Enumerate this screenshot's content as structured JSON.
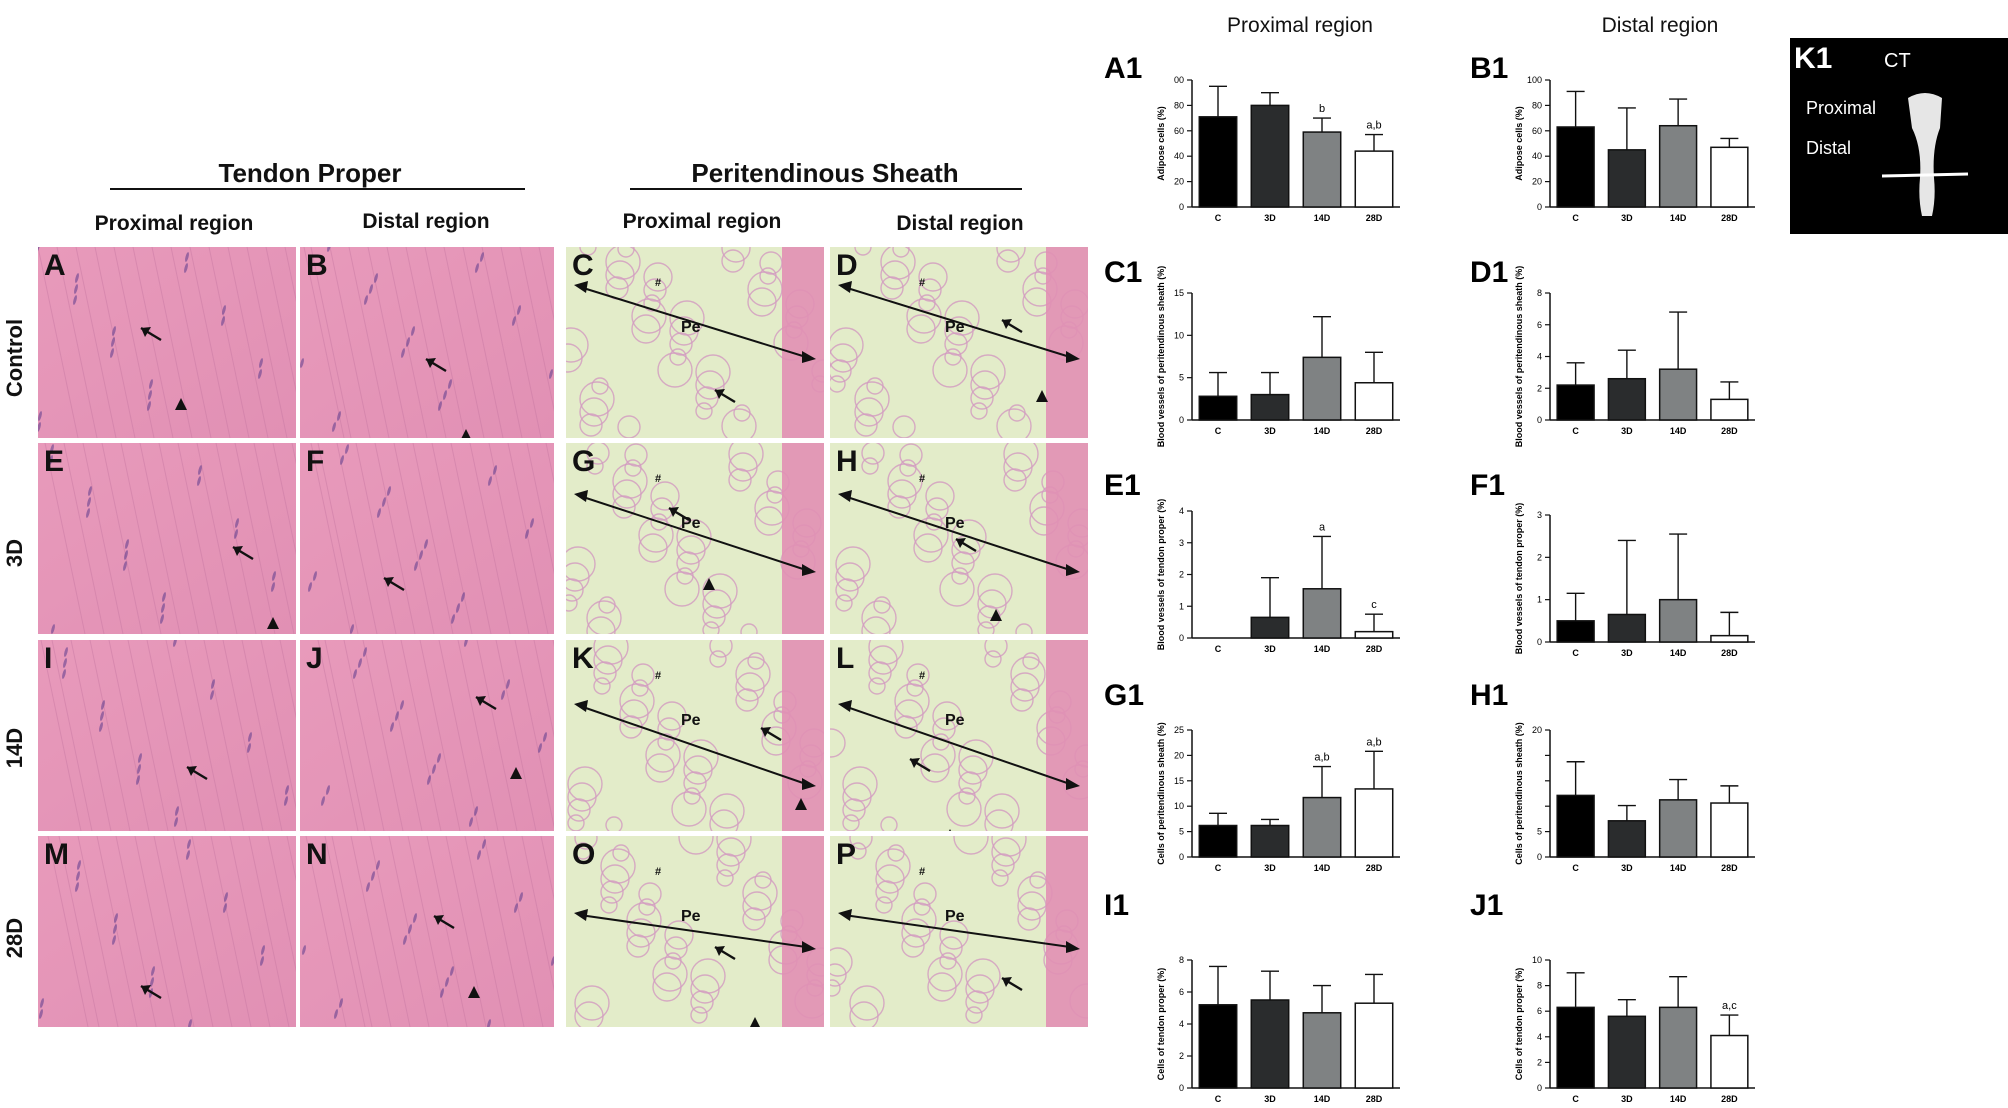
{
  "figure": {
    "tendon_proper": "Tendon Proper",
    "peritendinous_sheath": "Peritendinous Sheath",
    "proximal_region": "Proximal region",
    "distal_region": "Distal region",
    "rows": [
      "Control",
      "3D",
      "14D",
      "28D"
    ],
    "panel_letters": [
      "A",
      "B",
      "C",
      "D",
      "E",
      "F",
      "G",
      "H",
      "I",
      "J",
      "K",
      "L",
      "M",
      "N",
      "O",
      "P"
    ],
    "pe_label": "Pe",
    "hash_label": "#",
    "chart_col_proximal": "Proximal region",
    "chart_col_distal": "Distal region"
  },
  "inset": {
    "letter": "K1",
    "ct": "CT",
    "proximal": "Proximal",
    "distal": "Distal"
  },
  "colors": {
    "tendon_pink": "#e190b4",
    "sheath_green": "#e3ecc9",
    "bar_c": "#000000",
    "bar_3d": "#2a2c2d",
    "bar_14d": "#7f8283",
    "bar_28d": "#ffffff"
  },
  "chart_data": [
    {
      "id": "A1",
      "type": "bar",
      "ylabel": "Adipose cells (%)",
      "categories": [
        "C",
        "3D",
        "14D",
        "28D"
      ],
      "values": [
        71,
        80,
        59,
        44
      ],
      "errors": [
        24,
        10,
        11,
        13
      ],
      "ylim": [
        0,
        100
      ],
      "ticks": [
        "0",
        "20",
        "40",
        "60",
        "80",
        "00"
      ],
      "annotations": [
        "",
        "",
        "b",
        "a,b"
      ]
    },
    {
      "id": "B1",
      "type": "bar",
      "ylabel": "Adipose cells (%)",
      "categories": [
        "C",
        "3D",
        "14D",
        "28D"
      ],
      "values": [
        63,
        45,
        64,
        47
      ],
      "errors": [
        28,
        33,
        21,
        7
      ],
      "ylim": [
        0,
        100
      ],
      "ticks": [
        "0",
        "20",
        "40",
        "60",
        "80",
        "100"
      ],
      "annotations": [
        "",
        "",
        "",
        ""
      ]
    },
    {
      "id": "C1",
      "type": "bar",
      "ylabel": "Blood vessels of peritendinous sheath (%)",
      "categories": [
        "C",
        "3D",
        "14D",
        "28D"
      ],
      "values": [
        2.8,
        3.0,
        7.4,
        4.4
      ],
      "errors": [
        2.8,
        2.6,
        4.8,
        3.6
      ],
      "ylim": [
        0,
        15
      ],
      "ticks": [
        "0",
        "5",
        "10",
        "15"
      ],
      "annotations": [
        "",
        "",
        "",
        ""
      ]
    },
    {
      "id": "D1",
      "type": "bar",
      "ylabel": "Blood vessels of peritendinous sheath (%)",
      "categories": [
        "C",
        "3D",
        "14D",
        "28D"
      ],
      "values": [
        2.2,
        2.6,
        3.2,
        1.3
      ],
      "errors": [
        1.4,
        1.8,
        3.6,
        1.1
      ],
      "ylim": [
        0,
        8
      ],
      "ticks": [
        "0",
        "2",
        "4",
        "6",
        "8"
      ],
      "annotations": [
        "",
        "",
        "",
        ""
      ]
    },
    {
      "id": "E1",
      "type": "bar",
      "ylabel": "Blood vessels of tendon proper (%)",
      "categories": [
        "C",
        "3D",
        "14D",
        "28D"
      ],
      "values": [
        0,
        0.65,
        1.55,
        0.2
      ],
      "errors": [
        0,
        1.25,
        1.65,
        0.55
      ],
      "ylim": [
        0,
        4
      ],
      "ticks": [
        "0",
        "1",
        "2",
        "3",
        "4"
      ],
      "annotations": [
        "",
        "",
        "a",
        "c"
      ]
    },
    {
      "id": "F1",
      "type": "bar",
      "ylabel": "Blood vessels of tendon proper (%)",
      "categories": [
        "C",
        "3D",
        "14D",
        "28D"
      ],
      "values": [
        0.5,
        0.65,
        1.0,
        0.15
      ],
      "errors": [
        0.65,
        1.75,
        1.55,
        0.55
      ],
      "ylim": [
        0,
        3
      ],
      "ticks": [
        "0",
        "1",
        "2",
        "3"
      ],
      "annotations": [
        "",
        "",
        "",
        ""
      ]
    },
    {
      "id": "G1",
      "type": "bar",
      "ylabel": "Cells of peritendinous sheath (%)",
      "categories": [
        "C",
        "3D",
        "14D",
        "28D"
      ],
      "values": [
        6.2,
        6.2,
        11.7,
        13.4
      ],
      "errors": [
        2.4,
        1.2,
        6.1,
        7.4
      ],
      "ylim": [
        0,
        25
      ],
      "ticks": [
        "0",
        "5",
        "10",
        "15",
        "20",
        "25"
      ],
      "annotations": [
        "",
        "",
        "a,b",
        "a,b"
      ]
    },
    {
      "id": "H1",
      "type": "bar",
      "ylabel": "Cells of peritendinous sheath (%)",
      "categories": [
        "C",
        "3D",
        "14D",
        "28D"
      ],
      "values": [
        9.7,
        5.7,
        9.0,
        8.5
      ],
      "errors": [
        5.3,
        2.4,
        3.2,
        2.7
      ],
      "ylim": [
        0,
        20
      ],
      "ticks": [
        "0",
        "5",
        "",
        "",
        "",
        "20"
      ],
      "annotations": [
        "",
        "",
        "",
        ""
      ]
    },
    {
      "id": "I1",
      "type": "bar",
      "ylabel": "Cells of tendon proper (%)",
      "categories": [
        "C",
        "3D",
        "14D",
        "28D"
      ],
      "values": [
        5.2,
        5.5,
        4.7,
        5.3
      ],
      "errors": [
        2.4,
        1.8,
        1.7,
        1.8
      ],
      "ylim": [
        0,
        8
      ],
      "ticks": [
        "0",
        "2",
        "4",
        "6",
        "8"
      ],
      "annotations": [
        "",
        "",
        "",
        ""
      ]
    },
    {
      "id": "J1",
      "type": "bar",
      "ylabel": "Cells of tendon proper (%)",
      "categories": [
        "C",
        "3D",
        "14D",
        "28D"
      ],
      "values": [
        6.3,
        5.6,
        6.3,
        4.1
      ],
      "errors": [
        2.7,
        1.3,
        2.4,
        1.6
      ],
      "ylim": [
        0,
        10
      ],
      "ticks": [
        "0",
        "2",
        "4",
        "6",
        "8",
        "10"
      ],
      "annotations": [
        "",
        "",
        "",
        "a,c"
      ]
    }
  ]
}
